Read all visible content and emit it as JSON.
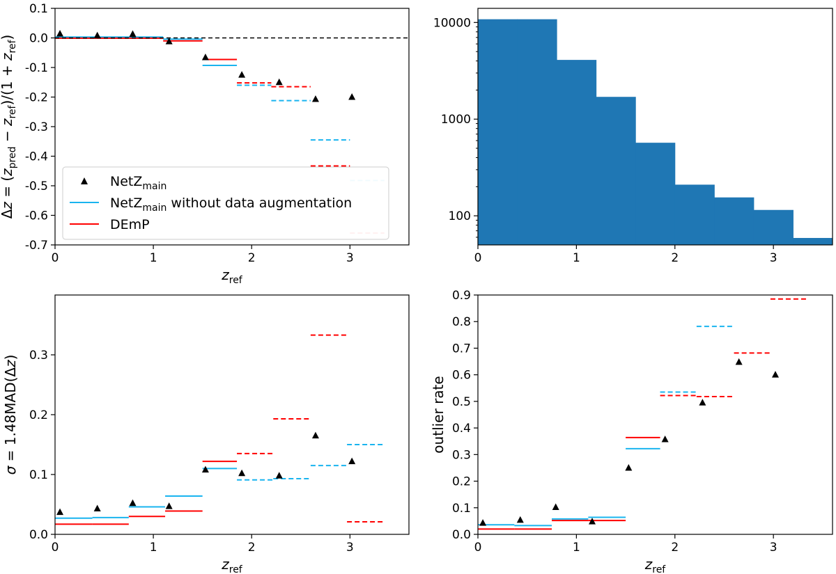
{
  "chart_data": [
    {
      "id": "dz",
      "type": "scatter+steps",
      "xlabel": "z_ref",
      "ylabel": "Δz = (z_pred − z_ref)/(1 + z_ref)",
      "xlim": [
        0,
        3.6
      ],
      "ylim": [
        -0.7,
        0.1
      ],
      "xticks": [
        0,
        1,
        2,
        3
      ],
      "yticks": [
        0.1,
        0.0,
        -0.1,
        -0.2,
        -0.3,
        -0.4,
        -0.5,
        -0.6,
        -0.7
      ],
      "ytick_labels": [
        "0.1",
        "0.0",
        "-0.1",
        "-0.2",
        "-0.3",
        "-0.4",
        "-0.5",
        "-0.6",
        "-0.7"
      ],
      "reference_line": 0.0,
      "legend": {
        "placement": "lower-left",
        "entries": [
          {
            "marker": "triangle",
            "color": "#000000",
            "label_main": "NetZ",
            "label_sub": "main",
            "label_rest": ""
          },
          {
            "marker": "line",
            "color": "#19b4ef",
            "label_main": "NetZ",
            "label_sub": "main",
            "label_rest": " without data augmentation"
          },
          {
            "marker": "line",
            "color": "#ff0000",
            "label_main": "DEmP",
            "label_sub": "",
            "label_rest": ""
          }
        ]
      },
      "series": [
        {
          "name": "NetZ_main",
          "style": "triangle",
          "color": "#000000",
          "points": [
            [
              0.05,
              0.014
            ],
            [
              0.43,
              0.008
            ],
            [
              0.79,
              0.013
            ],
            [
              1.16,
              -0.012
            ],
            [
              1.53,
              -0.066
            ],
            [
              1.9,
              -0.125
            ],
            [
              2.28,
              -0.15
            ],
            [
              2.65,
              -0.207
            ],
            [
              3.02,
              -0.2
            ]
          ]
        },
        {
          "name": "NetZ_main without data augmentation",
          "style": "steps",
          "color": "#19b4ef",
          "segments": [
            [
              0,
              0.4,
              0.003,
              "solid"
            ],
            [
              0.4,
              0.75,
              0.003,
              "solid"
            ],
            [
              0.75,
              1.1,
              0.003,
              "solid"
            ],
            [
              1.1,
              1.5,
              -0.004,
              "solid"
            ],
            [
              1.5,
              1.85,
              -0.093,
              "solid"
            ],
            [
              1.85,
              2.2,
              -0.16,
              "dashed"
            ],
            [
              2.2,
              2.6,
              -0.212,
              "dashed"
            ],
            [
              2.6,
              3.0,
              -0.345,
              "dashed"
            ],
            [
              3.0,
              3.35,
              -0.482,
              "dashed-faded"
            ]
          ]
        },
        {
          "name": "DEmP",
          "style": "steps",
          "color": "#ff0000",
          "segments": [
            [
              0,
              0.4,
              -0.001,
              "solid"
            ],
            [
              0.4,
              0.75,
              -0.001,
              "solid"
            ],
            [
              0.75,
              1.1,
              -0.001,
              "solid"
            ],
            [
              1.1,
              1.5,
              -0.01,
              "solid"
            ],
            [
              1.5,
              1.85,
              -0.073,
              "solid"
            ],
            [
              1.85,
              2.2,
              -0.152,
              "dashed"
            ],
            [
              2.2,
              2.6,
              -0.165,
              "dashed"
            ],
            [
              2.6,
              3.0,
              -0.433,
              "dashed"
            ],
            [
              3.0,
              3.35,
              -0.66,
              "dashed-faded"
            ]
          ]
        }
      ]
    },
    {
      "id": "hist",
      "type": "bar",
      "scale": "log",
      "color": "#1f77b4",
      "xlim": [
        0,
        3.6
      ],
      "ylim_log": [
        50,
        14000
      ],
      "xticks": [
        0,
        1,
        2,
        3
      ],
      "yticks": [
        100,
        1000,
        10000
      ],
      "ytick_labels": [
        "100",
        "1000",
        "10000"
      ],
      "bins": [
        [
          0,
          0.4,
          10800
        ],
        [
          0.4,
          0.8,
          10800
        ],
        [
          0.8,
          1.2,
          4100
        ],
        [
          1.2,
          1.6,
          1700
        ],
        [
          1.6,
          2.0,
          570
        ],
        [
          2.0,
          2.4,
          210
        ],
        [
          2.4,
          2.8,
          155
        ],
        [
          2.8,
          3.2,
          115
        ],
        [
          3.2,
          3.6,
          59
        ]
      ]
    },
    {
      "id": "sigma",
      "type": "scatter+steps",
      "xlabel": "z_ref",
      "ylabel": "σ = 1.48MAD(Δz)",
      "xlim": [
        0,
        3.6
      ],
      "ylim": [
        0,
        0.4
      ],
      "xticks": [
        0,
        1,
        2,
        3
      ],
      "yticks": [
        0.0,
        0.1,
        0.2,
        0.3
      ],
      "ytick_labels": [
        "0.0",
        "0.1",
        "0.2",
        "0.3"
      ],
      "series": [
        {
          "name": "NetZ_main",
          "style": "triangle",
          "color": "#000000",
          "points": [
            [
              0.05,
              0.037
            ],
            [
              0.43,
              0.043
            ],
            [
              0.79,
              0.052
            ],
            [
              1.16,
              0.047
            ],
            [
              1.53,
              0.108
            ],
            [
              1.9,
              0.102
            ],
            [
              2.28,
              0.098
            ],
            [
              2.65,
              0.165
            ],
            [
              3.02,
              0.122
            ]
          ]
        },
        {
          "name": "NetZ_main without data augmentation",
          "style": "steps",
          "color": "#19b4ef",
          "segments": [
            [
              0,
              0.38,
              0.027,
              "solid"
            ],
            [
              0.38,
              0.75,
              0.028,
              "solid"
            ],
            [
              0.75,
              1.12,
              0.046,
              "solid"
            ],
            [
              1.12,
              1.5,
              0.064,
              "solid"
            ],
            [
              1.5,
              1.85,
              0.11,
              "solid"
            ],
            [
              1.85,
              2.22,
              0.091,
              "dashed"
            ],
            [
              2.22,
              2.6,
              0.093,
              "dashed"
            ],
            [
              2.6,
              2.97,
              0.115,
              "dashed"
            ],
            [
              2.97,
              3.35,
              0.15,
              "dashed"
            ]
          ]
        },
        {
          "name": "DEmP",
          "style": "steps",
          "color": "#ff0000",
          "segments": [
            [
              0,
              0.38,
              0.017,
              "solid"
            ],
            [
              0.38,
              0.75,
              0.017,
              "solid"
            ],
            [
              0.75,
              1.12,
              0.03,
              "solid"
            ],
            [
              1.12,
              1.5,
              0.039,
              "solid"
            ],
            [
              1.5,
              1.85,
              0.122,
              "solid"
            ],
            [
              1.85,
              2.22,
              0.135,
              "dashed"
            ],
            [
              2.22,
              2.6,
              0.193,
              "dashed"
            ],
            [
              2.6,
              2.97,
              0.333,
              "dashed"
            ],
            [
              2.97,
              3.35,
              0.021,
              "dashed"
            ]
          ]
        }
      ]
    },
    {
      "id": "outlier",
      "type": "scatter+steps",
      "xlabel": "z_ref",
      "ylabel": "outlier rate",
      "xlim": [
        0,
        3.6
      ],
      "ylim": [
        0,
        0.9
      ],
      "xticks": [
        0,
        1,
        2,
        3
      ],
      "yticks": [
        0.0,
        0.1,
        0.2,
        0.3,
        0.4,
        0.5,
        0.6,
        0.7,
        0.8,
        0.9
      ],
      "ytick_labels": [
        "0.0",
        "0.1",
        "0.2",
        "0.3",
        "0.4",
        "0.5",
        "0.6",
        "0.7",
        "0.8",
        "0.9"
      ],
      "series": [
        {
          "name": "NetZ_main",
          "style": "triangle",
          "color": "#000000",
          "points": [
            [
              0.05,
              0.043
            ],
            [
              0.43,
              0.054
            ],
            [
              0.79,
              0.102
            ],
            [
              1.16,
              0.048
            ],
            [
              1.53,
              0.25
            ],
            [
              1.9,
              0.357
            ],
            [
              2.28,
              0.495
            ],
            [
              2.65,
              0.648
            ],
            [
              3.02,
              0.6
            ]
          ]
        },
        {
          "name": "NetZ_main without data augmentation",
          "style": "steps",
          "color": "#19b4ef",
          "segments": [
            [
              0,
              0.37,
              0.036,
              "solid"
            ],
            [
              0.37,
              0.75,
              0.033,
              "solid"
            ],
            [
              0.75,
              1.12,
              0.058,
              "solid"
            ],
            [
              1.12,
              1.5,
              0.064,
              "solid"
            ],
            [
              1.5,
              1.85,
              0.322,
              "solid"
            ],
            [
              1.85,
              2.22,
              0.535,
              "dashed"
            ],
            [
              2.22,
              2.6,
              0.782,
              "dashed"
            ]
          ]
        },
        {
          "name": "DEmP",
          "style": "steps",
          "color": "#ff0000",
          "segments": [
            [
              0,
              0.37,
              0.02,
              "solid"
            ],
            [
              0.37,
              0.75,
              0.02,
              "solid"
            ],
            [
              0.75,
              1.12,
              0.052,
              "solid"
            ],
            [
              1.12,
              1.5,
              0.052,
              "solid"
            ],
            [
              1.5,
              1.85,
              0.364,
              "solid"
            ],
            [
              1.85,
              2.22,
              0.522,
              "dashed"
            ],
            [
              2.22,
              2.6,
              0.518,
              "dashed"
            ],
            [
              2.6,
              2.97,
              0.682,
              "dashed"
            ],
            [
              2.97,
              3.35,
              0.885,
              "dashed"
            ]
          ]
        }
      ]
    }
  ]
}
